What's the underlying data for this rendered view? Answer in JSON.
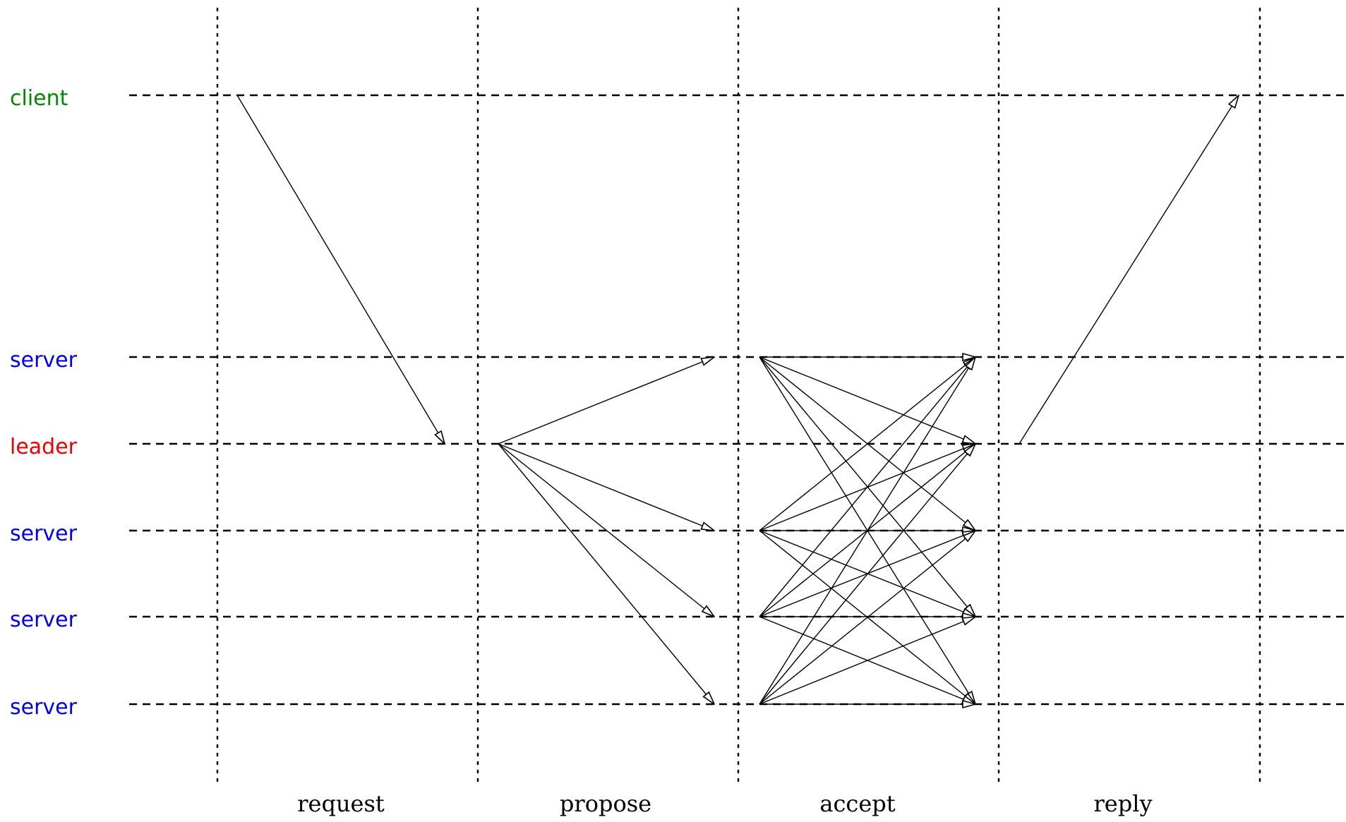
{
  "lanes": [
    {
      "id": "client",
      "label": "client",
      "color": "#008800"
    },
    {
      "id": "s1",
      "label": "server",
      "color": "#0000ee"
    },
    {
      "id": "leader",
      "label": "leader",
      "color": "#ee0000"
    },
    {
      "id": "s3",
      "label": "server",
      "color": "#0000ee"
    },
    {
      "id": "s4",
      "label": "server",
      "color": "#0000ee"
    },
    {
      "id": "s5",
      "label": "server",
      "color": "#0000ee"
    }
  ],
  "phases": [
    {
      "label": "request"
    },
    {
      "label": "propose"
    },
    {
      "label": "accept"
    },
    {
      "label": "reply"
    }
  ],
  "messages": [
    {
      "phase": "request",
      "from": "client",
      "to": "leader"
    },
    {
      "phase": "propose",
      "from": "leader",
      "to": "s1"
    },
    {
      "phase": "propose",
      "from": "leader",
      "to": "s3"
    },
    {
      "phase": "propose",
      "from": "leader",
      "to": "s4"
    },
    {
      "phase": "propose",
      "from": "leader",
      "to": "s5"
    },
    {
      "phase": "accept",
      "from": "s1",
      "to": "s1"
    },
    {
      "phase": "accept",
      "from": "s1",
      "to": "leader"
    },
    {
      "phase": "accept",
      "from": "s1",
      "to": "s3"
    },
    {
      "phase": "accept",
      "from": "s1",
      "to": "s4"
    },
    {
      "phase": "accept",
      "from": "s1",
      "to": "s5"
    },
    {
      "phase": "accept",
      "from": "s3",
      "to": "s1"
    },
    {
      "phase": "accept",
      "from": "s3",
      "to": "leader"
    },
    {
      "phase": "accept",
      "from": "s3",
      "to": "s3"
    },
    {
      "phase": "accept",
      "from": "s3",
      "to": "s4"
    },
    {
      "phase": "accept",
      "from": "s3",
      "to": "s5"
    },
    {
      "phase": "accept",
      "from": "s4",
      "to": "s1"
    },
    {
      "phase": "accept",
      "from": "s4",
      "to": "leader"
    },
    {
      "phase": "accept",
      "from": "s4",
      "to": "s3"
    },
    {
      "phase": "accept",
      "from": "s4",
      "to": "s4"
    },
    {
      "phase": "accept",
      "from": "s4",
      "to": "s5"
    },
    {
      "phase": "accept",
      "from": "s5",
      "to": "s1"
    },
    {
      "phase": "accept",
      "from": "s5",
      "to": "leader"
    },
    {
      "phase": "accept",
      "from": "s5",
      "to": "s3"
    },
    {
      "phase": "accept",
      "from": "s5",
      "to": "s4"
    },
    {
      "phase": "accept",
      "from": "s5",
      "to": "s5"
    },
    {
      "phase": "reply",
      "from": "leader",
      "to": "client"
    }
  ]
}
